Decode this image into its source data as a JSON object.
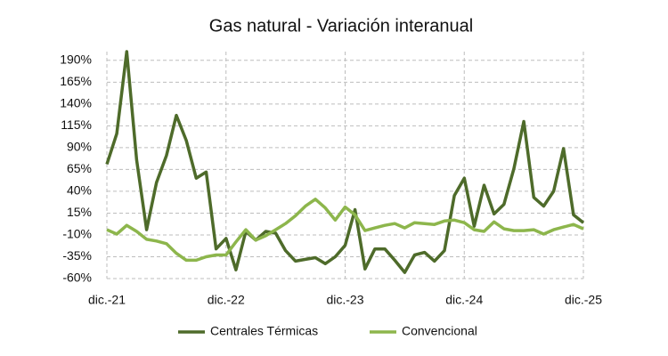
{
  "chart_data": {
    "type": "line",
    "title": "Gas natural - Variación interanual",
    "categories": [
      "dic.-21",
      null,
      null,
      null,
      null,
      null,
      null,
      null,
      null,
      null,
      null,
      null,
      "dic.-22",
      null,
      null,
      null,
      null,
      null,
      null,
      null,
      null,
      null,
      null,
      null,
      "dic.-23",
      null,
      null,
      null,
      null,
      null,
      null,
      null,
      null,
      null,
      null,
      null,
      "dic.-24",
      null,
      null,
      null,
      null,
      null,
      null,
      null,
      null,
      null,
      null,
      null,
      "dic.-25"
    ],
    "series": [
      {
        "name": "Centrales Térmicas",
        "color": "#4e6b2a",
        "values": [
          71,
          106,
          200,
          76,
          -4,
          50,
          81,
          127,
          98,
          55,
          62,
          -26,
          -14,
          -50,
          -6,
          -16,
          -6,
          -8,
          -28,
          -40,
          -38,
          -36,
          -43,
          -35,
          -22,
          19,
          -49,
          -26,
          -26,
          -39,
          -53,
          -33,
          -30,
          -40,
          -28,
          35,
          55,
          0,
          47,
          14,
          25,
          66,
          120,
          33,
          23,
          40,
          89,
          13,
          4
        ]
      },
      {
        "name": "Convencional",
        "color": "#8db64c",
        "values": [
          -4,
          -9,
          1,
          -6,
          -15,
          -17,
          -20,
          -31,
          -39,
          -39,
          -35,
          -33,
          -33,
          -18,
          -4,
          -16,
          -11,
          -4,
          3,
          12,
          23,
          31,
          21,
          7,
          22,
          13,
          -5,
          -2,
          1,
          3,
          -2,
          4,
          3,
          2,
          6,
          7,
          4,
          -4,
          -6,
          5,
          -3,
          -5,
          -5,
          -4,
          -9,
          -4,
          -1,
          2,
          -3
        ]
      }
    ],
    "ylim": [
      -60,
      200
    ],
    "yticks": [
      {
        "value": -60,
        "label": "-60%"
      },
      {
        "value": -35,
        "label": "-35%"
      },
      {
        "value": -10,
        "label": "-10%"
      },
      {
        "value": 15,
        "label": "15%"
      },
      {
        "value": 40,
        "label": "40%"
      },
      {
        "value": 65,
        "label": "65%"
      },
      {
        "value": 90,
        "label": "90%"
      },
      {
        "value": 115,
        "label": "115%"
      },
      {
        "value": 140,
        "label": "140%"
      },
      {
        "value": 165,
        "label": "165%"
      },
      {
        "value": 190,
        "label": "190%"
      }
    ],
    "grid": true,
    "legend": "bottom"
  }
}
